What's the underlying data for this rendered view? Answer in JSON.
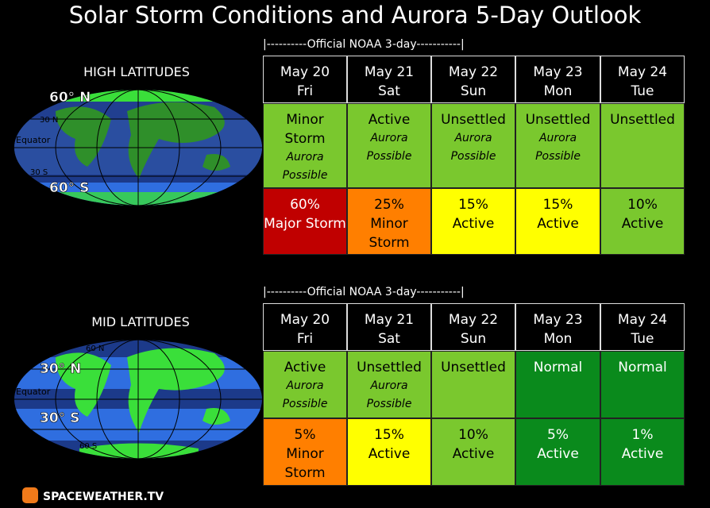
{
  "title": "Solar Storm Conditions and Aurora 5-Day Outlook",
  "panels": [
    {
      "heading": "HIGH LATITUDES",
      "noaa": "|----------Official NOAA 3-day-----------|",
      "map_labels": [
        "60° N",
        "30 N",
        "Equator",
        "30 S",
        "60° S"
      ],
      "days": [
        {
          "date": "May 20",
          "weekday": "Fri"
        },
        {
          "date": "May 21",
          "weekday": "Sat"
        },
        {
          "date": "May 22",
          "weekday": "Sun"
        },
        {
          "date": "May 23",
          "weekday": "Mon"
        },
        {
          "date": "May 24",
          "weekday": "Tue"
        }
      ],
      "conditions": [
        {
          "text": "Minor Storm",
          "note": "Aurora Possible",
          "color": "#7ac82e"
        },
        {
          "text": "Active",
          "note": "Aurora Possible",
          "color": "#7ac82e"
        },
        {
          "text": "Unsettled",
          "note": "Aurora Possible",
          "color": "#7ac82e"
        },
        {
          "text": "Unsettled",
          "note": "Aurora Possible",
          "color": "#7ac82e"
        },
        {
          "text": "Unsettled",
          "color": "#7ac82e"
        }
      ],
      "forecasts": [
        {
          "chance": "60%",
          "text": "Major Storm",
          "color": "#c00000"
        },
        {
          "chance": "25%",
          "text": "Minor Storm",
          "color": "#ff7f00"
        },
        {
          "chance": "15%",
          "text": "Active",
          "color": "#ffff00"
        },
        {
          "chance": "15%",
          "text": "Active",
          "color": "#ffff00"
        },
        {
          "chance": "10%",
          "text": "Active",
          "color": "#7ac82e"
        }
      ]
    },
    {
      "heading": "MID LATITUDES",
      "noaa": "|----------Official NOAA 3-day-----------|",
      "map_labels": [
        "60 N",
        "30° N",
        "Equator",
        "30° S",
        "60 S"
      ],
      "days": [
        {
          "date": "May 20",
          "weekday": "Fri"
        },
        {
          "date": "May 21",
          "weekday": "Sat"
        },
        {
          "date": "May 22",
          "weekday": "Sun"
        },
        {
          "date": "May 23",
          "weekday": "Mon"
        },
        {
          "date": "May 24",
          "weekday": "Tue"
        }
      ],
      "conditions": [
        {
          "text": "Active",
          "note": "Aurora Possible",
          "color": "#7ac82e"
        },
        {
          "text": "Unsettled",
          "note": "Aurora Possible",
          "color": "#7ac82e"
        },
        {
          "text": "Unsettled",
          "color": "#7ac82e"
        },
        {
          "text": "Normal",
          "color": "#0a8a1c"
        },
        {
          "text": "Normal",
          "color": "#0a8a1c"
        }
      ],
      "forecasts": [
        {
          "chance": "5%",
          "text": "Minor Storm",
          "color": "#ff7f00"
        },
        {
          "chance": "15%",
          "text": "Active",
          "color": "#ffff00"
        },
        {
          "chance": "10%",
          "text": "Active",
          "color": "#7ac82e"
        },
        {
          "chance": "5%",
          "text": "Active",
          "color": "#0a8a1c"
        },
        {
          "chance": "1%",
          "text": "Active",
          "color": "#0a8a1c"
        }
      ]
    }
  ],
  "logo": "SPACEWEATHER.TV"
}
